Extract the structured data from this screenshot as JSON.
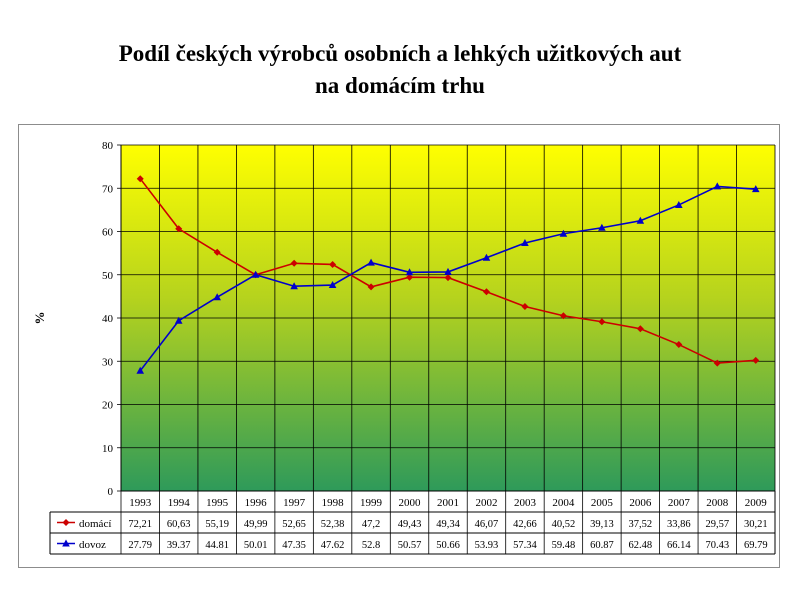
{
  "title_line1": "Podíl českých výrobců osobních a lehkých užitkových aut",
  "title_line2": "na domácím trhu",
  "chart_data": {
    "type": "line",
    "title": "Podíl českých výrobců osobních a lehkých užitkových aut na domácím trhu",
    "xlabel": "",
    "ylabel": "%",
    "ylim": [
      0,
      80
    ],
    "yticks": [
      0,
      10,
      20,
      30,
      40,
      50,
      60,
      70,
      80
    ],
    "grid": true,
    "background": "vertical gradient yellow to green",
    "categories": [
      "1993",
      "1994",
      "1995",
      "1996",
      "1997",
      "1998",
      "1999",
      "2000",
      "2001",
      "2002",
      "2003",
      "2004",
      "2005",
      "2006",
      "2007",
      "2008",
      "2009"
    ],
    "series": [
      {
        "name": "domácí",
        "color": "#cc0000",
        "marker": "diamond",
        "values": [
          72.21,
          60.63,
          55.19,
          49.99,
          52.65,
          52.38,
          47.2,
          49.43,
          49.34,
          46.07,
          42.66,
          40.52,
          39.13,
          37.52,
          33.86,
          29.57,
          30.21
        ],
        "labels": [
          "72,21",
          "60,63",
          "55,19",
          "49,99",
          "52,65",
          "52,38",
          "47,2",
          "49,43",
          "49,34",
          "46,07",
          "42,66",
          "40,52",
          "39,13",
          "37,52",
          "33,86",
          "29,57",
          "30,21"
        ]
      },
      {
        "name": "dovoz",
        "color": "#0000cc",
        "marker": "triangle",
        "values": [
          27.79,
          39.37,
          44.81,
          50.01,
          47.35,
          47.62,
          52.8,
          50.57,
          50.66,
          53.93,
          57.34,
          59.48,
          60.87,
          62.48,
          66.14,
          70.43,
          69.79
        ],
        "labels": [
          "27.79",
          "39.37",
          "44.81",
          "50.01",
          "47.35",
          "47.62",
          "52.8",
          "50.57",
          "50.66",
          "53.93",
          "57.34",
          "59.48",
          "60.87",
          "62.48",
          "66.14",
          "70.43",
          "69.79"
        ]
      }
    ],
    "legend": "data table below chart"
  }
}
